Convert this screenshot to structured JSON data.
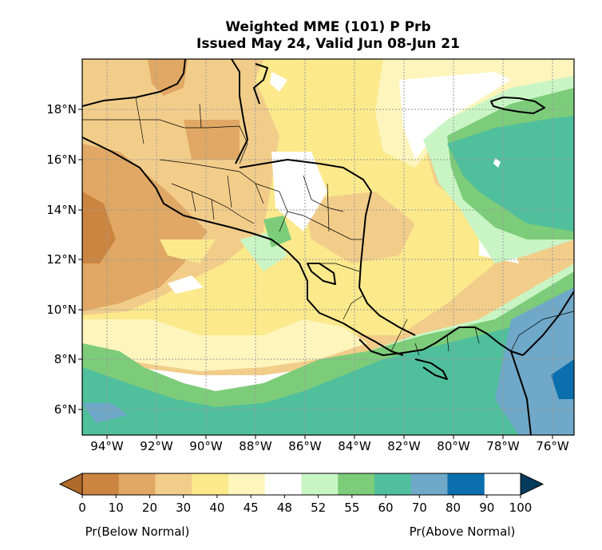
{
  "title_line1": "Weighted MME (101) P Prb",
  "title_line2": "Issued May 24, Valid Jun 08-Jun 21",
  "axes": {
    "lon_labels": [
      "94°W",
      "92°W",
      "90°W",
      "88°W",
      "86°W",
      "84°W",
      "82°W",
      "80°W",
      "78°W",
      "76°W"
    ],
    "lat_labels": [
      "18°N",
      "16°N",
      "14°N",
      "12°N",
      "10°N",
      "8°N",
      "6°N"
    ],
    "gridlines": "dotted"
  },
  "colorbar": {
    "ticks": [
      "0",
      "10",
      "20",
      "30",
      "40",
      "45",
      "48",
      "52",
      "55",
      "60",
      "70",
      "80",
      "90",
      "100"
    ],
    "colors": [
      "#b06a2a",
      "#cc8540",
      "#e0a864",
      "#f2cd8a",
      "#fbe98c",
      "#fdf5bc",
      "#ffffff",
      "#c9f5c5",
      "#7dcc7a",
      "#50bf9c",
      "#6fa8c8",
      "#0b6ead",
      "#063b5e"
    ],
    "label_left": "Pr(Below Normal)",
    "label_right": "Pr(Above Normal)"
  }
}
